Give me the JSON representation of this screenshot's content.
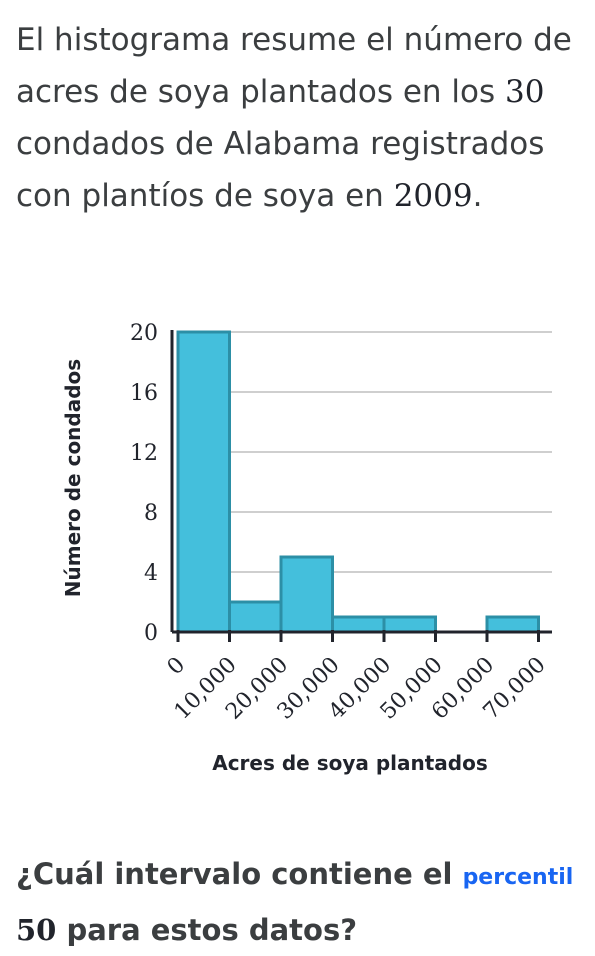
{
  "intro": {
    "part1": "El histograma resume el número de acres de soya plantados en los ",
    "count": "30",
    "part2": " condados de Alabama registrados con plantíos de soya en ",
    "year": "2009",
    "part3": "."
  },
  "question": {
    "part1": "¿Cuál intervalo contiene el ",
    "link": "percentil",
    "number": "50",
    "part2": " para estos datos?"
  },
  "colors": {
    "bar_fill": "#44bfdc",
    "bar_stroke": "#2c8fa6",
    "grid": "#bfbfbf",
    "axis": "#21242c",
    "link": "#1865f2"
  },
  "chart_data": {
    "type": "bar",
    "bins": [
      {
        "from": 0,
        "to": 10000,
        "value": 20
      },
      {
        "from": 10000,
        "to": 20000,
        "value": 2
      },
      {
        "from": 20000,
        "to": 30000,
        "value": 5
      },
      {
        "from": 30000,
        "to": 40000,
        "value": 1
      },
      {
        "from": 40000,
        "to": 50000,
        "value": 1
      },
      {
        "from": 50000,
        "to": 60000,
        "value": 0
      },
      {
        "from": 60000,
        "to": 70000,
        "value": 1
      }
    ],
    "x_ticks": [
      "0",
      "10,000",
      "20,000",
      "30,000",
      "40,000",
      "50,000",
      "60,000",
      "70,000"
    ],
    "y_ticks": [
      "0",
      "4",
      "8",
      "12",
      "16",
      "20"
    ],
    "xlabel": "Acres de soya plantados",
    "ylabel": "Número de condados",
    "xlim": [
      0,
      70000
    ],
    "ylim": [
      0,
      20
    ],
    "grid": "horizontal"
  }
}
